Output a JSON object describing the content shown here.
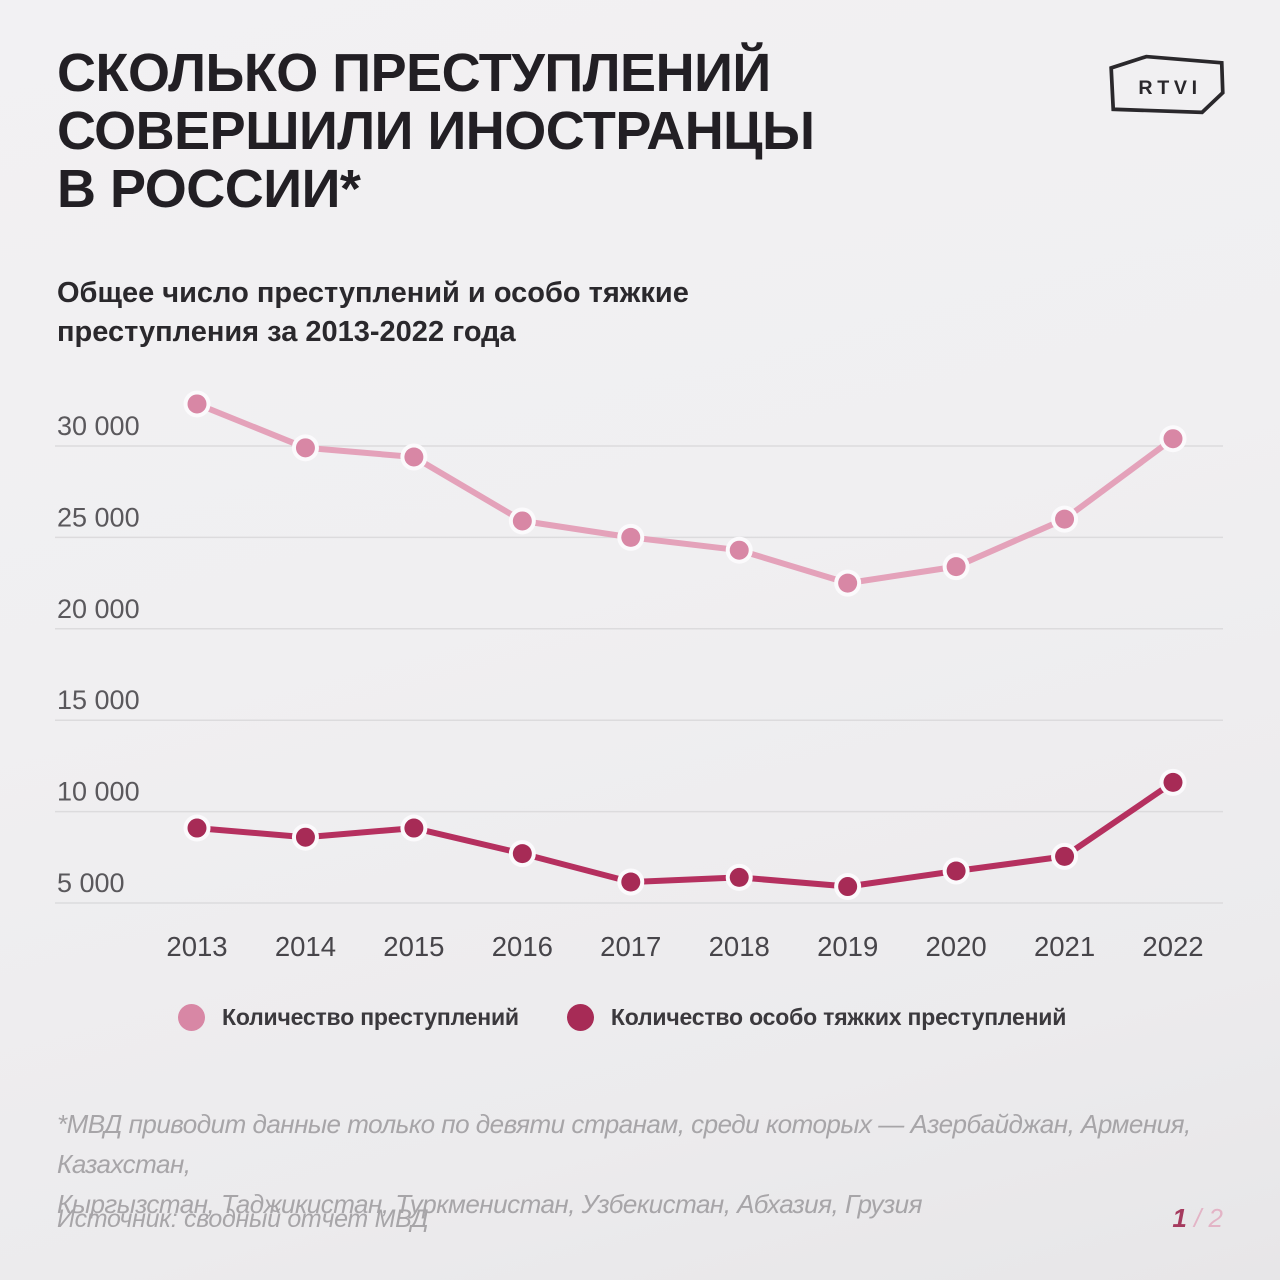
{
  "header": {
    "title": "СКОЛЬКО ПРЕСТУПЛЕНИЙ\nСОВЕРШИЛИ ИНОСТРАНЦЫ\nВ РОССИИ*",
    "logo_text": "RTVI",
    "subtitle": "Общее число преступлений и особо тяжкие\nпреступления за 2013-2022 года"
  },
  "chart_data": {
    "type": "line",
    "title": "Общее число преступлений и особо тяжкие преступления за 2013-2022 года",
    "categories": [
      "2013",
      "2014",
      "2015",
      "2016",
      "2017",
      "2018",
      "2019",
      "2020",
      "2021",
      "2022"
    ],
    "series": [
      {
        "name": "Количество преступлений",
        "color_line": "#e4a2ba",
        "color_point": "#d887a5",
        "values": [
          32300,
          29900,
          29400,
          25900,
          25000,
          24300,
          22500,
          23400,
          26000,
          30400
        ]
      },
      {
        "name": "Количество особо тяжких преступлений",
        "color_line": "#b5305f",
        "color_point": "#a72b56",
        "values": [
          9100,
          8600,
          9100,
          7700,
          6150,
          6400,
          5900,
          6750,
          7550,
          11600
        ]
      }
    ],
    "y_ticks": [
      {
        "label": "30 000",
        "value": 30000
      },
      {
        "label": "25 000",
        "value": 25000
      },
      {
        "label": "20 000",
        "value": 20000
      },
      {
        "label": "15 000",
        "value": 15000
      },
      {
        "label": "10 000",
        "value": 10000
      },
      {
        "label": "5 000",
        "value": 5000
      }
    ],
    "ylim": [
      2500,
      33000
    ],
    "grid": "horizontal",
    "legend_position": "bottom",
    "xlabel": "",
    "ylabel": ""
  },
  "colors": {
    "background": "#f0eff1",
    "gridline": "#dcdbdd",
    "y_tick_text": "#5a585c",
    "x_tick_text": "#47454a",
    "point_halo": "#fbfafc",
    "title_text": "#221f24"
  },
  "footnote": "*МВД приводит данные только по девяти странам, среди которых — Азербайджан, Армения, Казахстан,\nКыргызстан, Таджикистан, Туркменистан, Узбекистан, Абхазия, Грузия",
  "source": "Источник: сводный отчет МВД",
  "pagination": {
    "current": "1",
    "separator": " / ",
    "total": "2"
  }
}
